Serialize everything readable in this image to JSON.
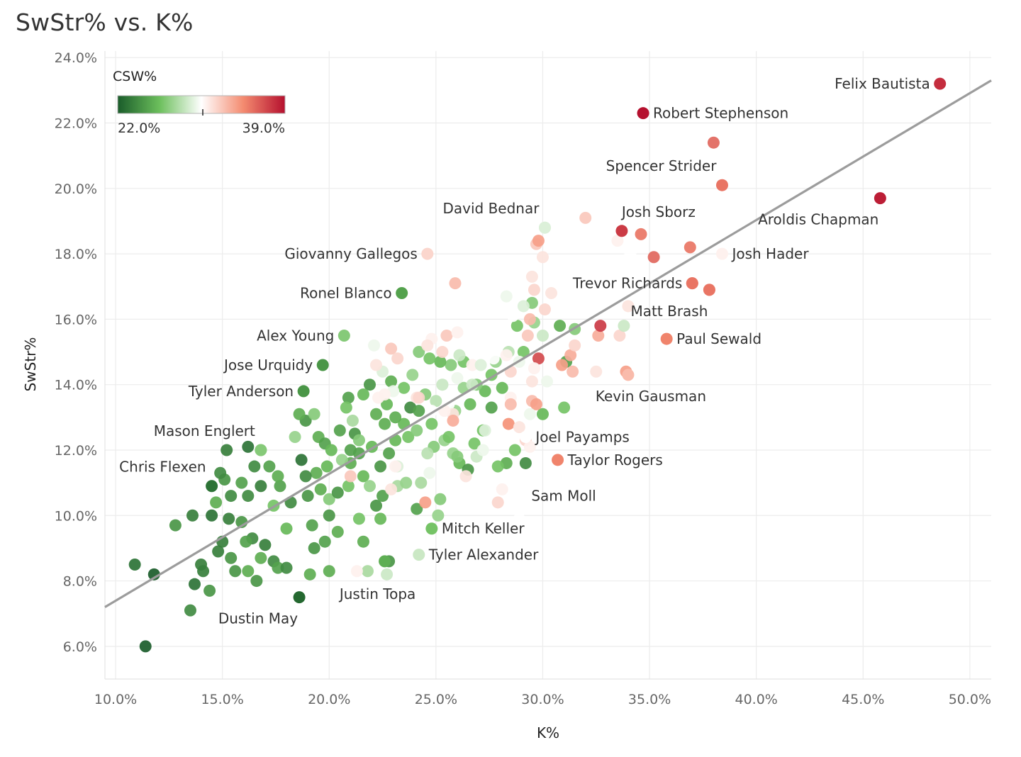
{
  "chart_data": {
    "type": "scatter",
    "title": "SwStr% vs. K%",
    "xlabel": "K%",
    "ylabel": "SwStr%",
    "xlim": [
      9.5,
      51
    ],
    "ylim": [
      5.0,
      24.2
    ],
    "x_ticks": [
      10,
      15,
      20,
      25,
      30,
      35,
      40,
      45,
      50
    ],
    "x_tick_labels": [
      "10.0%",
      "15.0%",
      "20.0%",
      "25.0%",
      "30.0%",
      "35.0%",
      "40.0%",
      "45.0%",
      "50.0%"
    ],
    "y_ticks": [
      6,
      8,
      10,
      12,
      14,
      16,
      18,
      20,
      22,
      24
    ],
    "y_tick_labels": [
      "6.0%",
      "8.0%",
      "10.0%",
      "12.0%",
      "14.0%",
      "16.0%",
      "18.0%",
      "20.0%",
      "22.0%",
      "24.0%"
    ],
    "grid": true,
    "trendline": {
      "x": [
        9.5,
        51
      ],
      "y": [
        7.2,
        23.3
      ]
    },
    "color_legend": {
      "title": "CSW%",
      "min_label": "22.0%",
      "max_label": "39.0%",
      "min": 22,
      "max": 39,
      "low_color": "#1a5c2a",
      "mid_color": "#ffffff",
      "high_color": "#b5102e",
      "placement": "top-left"
    },
    "labeled_points": [
      {
        "name": "Felix Bautista",
        "x": 48.6,
        "y": 23.2,
        "csw": 38.0,
        "label_side": "left"
      },
      {
        "name": "Robert Stephenson",
        "x": 34.7,
        "y": 22.3,
        "csw": 39.0,
        "label_side": "right"
      },
      {
        "name": "Spencer Strider",
        "x": 38.4,
        "y": 20.1,
        "csw": 35.5,
        "label_side": "above-left"
      },
      {
        "name": "Aroldis Chapman",
        "x": 45.8,
        "y": 19.7,
        "csw": 38.5,
        "label_side": "below-left"
      },
      {
        "name": "David Bednar",
        "x": 30.1,
        "y": 18.8,
        "csw": 29.5,
        "label_side": "above-left"
      },
      {
        "name": "Josh Sborz",
        "x": 33.7,
        "y": 18.7,
        "csw": 37.5,
        "label_side": "above-right"
      },
      {
        "name": "Giovanny Gallegos",
        "x": 24.6,
        "y": 18.0,
        "csw": 32.0,
        "label_side": "left"
      },
      {
        "name": "Josh Hader",
        "x": 38.4,
        "y": 18.0,
        "csw": 31.0,
        "label_side": "right"
      },
      {
        "name": "Ronel Blanco",
        "x": 23.4,
        "y": 16.8,
        "csw": 25.0,
        "label_side": "left"
      },
      {
        "name": "Trevor Richards",
        "x": 37.0,
        "y": 17.1,
        "csw": 35.5,
        "label_side": "left"
      },
      {
        "name": "Matt Brash",
        "x": 37.8,
        "y": 16.9,
        "csw": 35.5,
        "label_side": "below-left"
      },
      {
        "name": "Alex Young",
        "x": 20.7,
        "y": 15.5,
        "csw": 27.0,
        "label_side": "left"
      },
      {
        "name": "Paul Sewald",
        "x": 35.8,
        "y": 15.4,
        "csw": 35.0,
        "label_side": "right"
      },
      {
        "name": "Jose Urquidy",
        "x": 19.7,
        "y": 14.6,
        "csw": 24.5,
        "label_side": "left"
      },
      {
        "name": "Kevin Gausman",
        "x": 34.0,
        "y": 14.3,
        "csw": 33.0,
        "label_side": "below"
      },
      {
        "name": "Tyler Anderson",
        "x": 18.8,
        "y": 13.8,
        "csw": 24.5,
        "label_side": "left"
      },
      {
        "name": "Mason Englert",
        "x": 16.8,
        "y": 12.0,
        "csw": 27.0,
        "label_side": "above-left"
      },
      {
        "name": "Joel Payamps",
        "x": 29.2,
        "y": 12.4,
        "csw": 30.5,
        "label_side": "right"
      },
      {
        "name": "Taylor Rogers",
        "x": 30.7,
        "y": 11.7,
        "csw": 35.0,
        "label_side": "right"
      },
      {
        "name": "Chris Flexen",
        "x": 14.5,
        "y": 10.9,
        "csw": 23.0,
        "label_side": "above-left"
      },
      {
        "name": "Sam Moll",
        "x": 29.0,
        "y": 10.6,
        "csw": 30.5,
        "label_side": "right"
      },
      {
        "name": "Mitch Keller",
        "x": 24.8,
        "y": 9.6,
        "csw": 26.5,
        "label_side": "right"
      },
      {
        "name": "Tyler Alexander",
        "x": 24.2,
        "y": 8.8,
        "csw": 29.0,
        "label_side": "right"
      },
      {
        "name": "Justin Topa",
        "x": 22.6,
        "y": 8.6,
        "csw": 25.5,
        "label_side": "below-right"
      },
      {
        "name": "Dustin May",
        "x": 18.6,
        "y": 7.5,
        "csw": 22.5,
        "label_side": "below-left"
      }
    ],
    "other_points": [
      [
        11.4,
        6.0,
        22.0
      ],
      [
        10.9,
        8.5,
        23.0
      ],
      [
        11.8,
        8.2,
        22.0
      ],
      [
        13.5,
        7.1,
        24.0
      ],
      [
        13.7,
        7.9,
        23.0
      ],
      [
        14.0,
        8.5,
        23.5
      ],
      [
        14.4,
        7.7,
        24.5
      ],
      [
        12.8,
        9.7,
        24.5
      ],
      [
        13.6,
        10.0,
        23.5
      ],
      [
        14.5,
        10.0,
        23.0
      ],
      [
        15.0,
        9.2,
        23.5
      ],
      [
        15.4,
        8.7,
        24.5
      ],
      [
        15.6,
        8.3,
        24.5
      ],
      [
        15.1,
        11.1,
        24.5
      ],
      [
        15.2,
        12.0,
        23.5
      ],
      [
        16.2,
        12.1,
        23.0
      ],
      [
        16.8,
        12.0,
        27.0
      ],
      [
        16.2,
        10.6,
        24.0
      ],
      [
        16.8,
        10.9,
        23.5
      ],
      [
        17.4,
        10.3,
        26.5
      ],
      [
        17.7,
        10.9,
        25.0
      ],
      [
        18.2,
        10.4,
        24.0
      ],
      [
        18.0,
        9.6,
        26.0
      ],
      [
        17.0,
        9.1,
        23.5
      ],
      [
        16.8,
        8.7,
        25.5
      ],
      [
        17.4,
        8.6,
        24.0
      ],
      [
        17.6,
        8.4,
        25.0
      ],
      [
        18.0,
        8.4,
        24.0
      ],
      [
        16.6,
        8.0,
        24.5
      ],
      [
        16.2,
        8.3,
        25.5
      ],
      [
        15.9,
        9.8,
        24.5
      ],
      [
        16.4,
        9.3,
        24.0
      ],
      [
        15.3,
        9.9,
        23.5
      ],
      [
        14.8,
        8.9,
        23.5
      ],
      [
        14.1,
        8.3,
        23.5
      ],
      [
        18.7,
        11.7,
        23.0
      ],
      [
        18.9,
        12.9,
        24.5
      ],
      [
        19.3,
        13.1,
        27.0
      ],
      [
        19.5,
        12.4,
        25.5
      ],
      [
        19.8,
        12.2,
        25.0
      ],
      [
        20.1,
        12.0,
        26.0
      ],
      [
        20.5,
        12.6,
        25.0
      ],
      [
        21.2,
        12.5,
        24.5
      ],
      [
        21.4,
        11.9,
        25.0
      ],
      [
        19.9,
        11.5,
        26.0
      ],
      [
        19.4,
        11.3,
        25.5
      ],
      [
        18.9,
        11.2,
        24.0
      ],
      [
        19.0,
        10.6,
        24.5
      ],
      [
        19.6,
        10.8,
        25.5
      ],
      [
        20.0,
        10.5,
        27.0
      ],
      [
        20.4,
        10.7,
        24.5
      ],
      [
        20.9,
        10.9,
        26.5
      ],
      [
        21.0,
        11.6,
        25.5
      ],
      [
        21.6,
        11.2,
        26.0
      ],
      [
        21.9,
        10.9,
        27.5
      ],
      [
        20.0,
        10.0,
        24.5
      ],
      [
        20.4,
        9.5,
        25.5
      ],
      [
        19.2,
        9.7,
        25.0
      ],
      [
        19.8,
        9.2,
        25.0
      ],
      [
        19.3,
        9.0,
        24.5
      ],
      [
        19.1,
        8.2,
        25.5
      ],
      [
        20.0,
        8.3,
        25.5
      ],
      [
        21.4,
        9.9,
        26.5
      ],
      [
        21.6,
        9.2,
        25.5
      ],
      [
        22.2,
        10.3,
        24.5
      ],
      [
        22.4,
        9.9,
        26.0
      ],
      [
        22.5,
        10.6,
        25.0
      ],
      [
        23.2,
        10.9,
        28.0
      ],
      [
        23.6,
        11.0,
        27.5
      ],
      [
        23.2,
        11.5,
        29.5
      ],
      [
        22.4,
        11.5,
        24.5
      ],
      [
        22.8,
        11.9,
        25.0
      ],
      [
        22.6,
        12.8,
        25.5
      ],
      [
        23.1,
        12.3,
        26.0
      ],
      [
        23.5,
        12.8,
        26.0
      ],
      [
        23.8,
        13.3,
        24.0
      ],
      [
        24.2,
        13.2,
        25.0
      ],
      [
        24.5,
        13.7,
        27.0
      ],
      [
        24.8,
        12.8,
        26.5
      ],
      [
        25.4,
        12.3,
        27.5
      ],
      [
        25.8,
        11.9,
        27.5
      ],
      [
        26.1,
        11.6,
        26.0
      ],
      [
        26.5,
        11.4,
        24.5
      ],
      [
        26.8,
        12.2,
        26.5
      ],
      [
        27.2,
        12.6,
        26.5
      ],
      [
        27.6,
        13.3,
        25.0
      ],
      [
        27.3,
        13.8,
        26.0
      ],
      [
        27.6,
        14.3,
        26.5
      ],
      [
        28.1,
        13.9,
        26.0
      ],
      [
        27.8,
        14.7,
        27.5
      ],
      [
        28.4,
        15.0,
        28.5
      ],
      [
        28.8,
        15.8,
        26.5
      ],
      [
        29.1,
        15.0,
        26.5
      ],
      [
        29.6,
        15.9,
        27.5
      ],
      [
        29.5,
        16.5,
        27.0
      ],
      [
        30.0,
        15.5,
        29.0
      ],
      [
        30.8,
        15.8,
        25.5
      ],
      [
        31.5,
        15.7,
        27.0
      ],
      [
        31.1,
        14.7,
        25.0
      ],
      [
        31.0,
        13.3,
        26.5
      ],
      [
        30.0,
        13.1,
        26.0
      ],
      [
        28.7,
        12.0,
        26.5
      ],
      [
        28.3,
        11.6,
        25.5
      ],
      [
        29.2,
        11.6,
        24.0
      ],
      [
        27.9,
        11.5,
        26.5
      ],
      [
        26.0,
        11.8,
        27.0
      ],
      [
        25.6,
        12.4,
        26.5
      ],
      [
        24.9,
        12.1,
        27.0
      ],
      [
        24.3,
        11.0,
        28.0
      ],
      [
        24.1,
        10.2,
        25.0
      ],
      [
        25.2,
        10.5,
        27.0
      ],
      [
        25.0,
        13.5,
        28.5
      ],
      [
        25.9,
        13.2,
        27.5
      ],
      [
        26.6,
        13.4,
        26.0
      ],
      [
        26.3,
        13.9,
        27.5
      ],
      [
        26.9,
        14.0,
        27.0
      ],
      [
        26.3,
        14.7,
        26.5
      ],
      [
        25.7,
        14.6,
        27.0
      ],
      [
        25.2,
        14.7,
        26.0
      ],
      [
        24.7,
        14.8,
        26.5
      ],
      [
        24.2,
        15.0,
        27.0
      ],
      [
        23.9,
        14.3,
        27.5
      ],
      [
        23.5,
        13.9,
        26.5
      ],
      [
        22.9,
        14.1,
        25.5
      ],
      [
        22.5,
        14.4,
        29.5
      ],
      [
        21.9,
        14.0,
        24.5
      ],
      [
        21.6,
        13.7,
        26.0
      ],
      [
        20.9,
        13.6,
        25.0
      ],
      [
        20.8,
        13.3,
        26.5
      ],
      [
        21.1,
        12.9,
        28.0
      ],
      [
        22.2,
        13.1,
        25.5
      ],
      [
        22.7,
        13.4,
        26.0
      ],
      [
        23.1,
        13.0,
        25.5
      ],
      [
        23.7,
        12.4,
        26.5
      ],
      [
        24.1,
        12.6,
        27.0
      ],
      [
        24.6,
        11.9,
        28.5
      ],
      [
        22.0,
        12.1,
        26.0
      ],
      [
        21.4,
        12.3,
        27.0
      ],
      [
        21.0,
        12.0,
        25.0
      ],
      [
        20.6,
        11.7,
        27.5
      ],
      [
        18.4,
        12.4,
        27.5
      ],
      [
        18.6,
        13.1,
        25.5
      ],
      [
        17.2,
        11.5,
        25.0
      ],
      [
        17.6,
        11.2,
        25.5
      ],
      [
        16.5,
        11.5,
        24.0
      ],
      [
        15.9,
        11.0,
        25.0
      ],
      [
        15.4,
        10.6,
        24.0
      ],
      [
        14.7,
        10.4,
        25.5
      ],
      [
        14.9,
        11.3,
        24.0
      ],
      [
        16.1,
        9.2,
        25.0
      ],
      [
        22.8,
        8.6,
        24.5
      ],
      [
        21.8,
        8.3,
        28.0
      ],
      [
        21.3,
        8.3,
        31.0
      ],
      [
        25.1,
        10.0,
        27.5
      ],
      [
        24.8,
        15.4,
        31.0
      ],
      [
        25.5,
        15.5,
        32.5
      ],
      [
        26.0,
        15.6,
        31.0
      ],
      [
        25.3,
        15.0,
        32.0
      ],
      [
        24.6,
        15.2,
        31.5
      ],
      [
        22.9,
        15.1,
        32.5
      ],
      [
        23.2,
        14.8,
        32.0
      ],
      [
        22.1,
        15.2,
        30.0
      ],
      [
        22.2,
        14.6,
        31.5
      ],
      [
        26.7,
        14.6,
        31.0
      ],
      [
        26.0,
        14.2,
        30.0
      ],
      [
        25.3,
        14.0,
        29.5
      ],
      [
        25.6,
        13.4,
        30.5
      ],
      [
        25.8,
        13.1,
        31.5
      ],
      [
        24.8,
        13.2,
        30.5
      ],
      [
        24.1,
        13.6,
        31.5
      ],
      [
        23.0,
        13.8,
        30.0
      ],
      [
        22.3,
        13.6,
        31.0
      ],
      [
        28.3,
        14.9,
        31.0
      ],
      [
        28.6,
        16.1,
        30.5
      ],
      [
        28.3,
        16.7,
        30.0
      ],
      [
        29.1,
        16.4,
        29.5
      ],
      [
        29.4,
        16.0,
        33.0
      ],
      [
        29.6,
        16.9,
        32.0
      ],
      [
        29.5,
        17.3,
        31.5
      ],
      [
        29.7,
        18.3,
        32.5
      ],
      [
        30.0,
        17.9,
        31.5
      ],
      [
        30.4,
        16.8,
        31.5
      ],
      [
        30.1,
        16.3,
        32.0
      ],
      [
        29.3,
        15.5,
        32.5
      ],
      [
        29.8,
        14.8,
        37.0
      ],
      [
        29.6,
        14.5,
        31.0
      ],
      [
        30.2,
        14.1,
        30.0
      ],
      [
        29.5,
        13.5,
        33.0
      ],
      [
        28.9,
        14.7,
        30.0
      ],
      [
        28.5,
        14.4,
        32.0
      ],
      [
        28.5,
        13.6,
        31.0
      ],
      [
        28.5,
        13.4,
        33.0
      ],
      [
        29.7,
        13.4,
        34.0
      ],
      [
        28.4,
        12.8,
        34.5
      ],
      [
        29.2,
        12.3,
        32.0
      ],
      [
        29.4,
        12.1,
        31.0
      ],
      [
        31.3,
        14.9,
        33.5
      ],
      [
        31.5,
        15.2,
        32.0
      ],
      [
        30.9,
        14.6,
        34.0
      ],
      [
        31.4,
        14.4,
        33.0
      ],
      [
        32.5,
        14.4,
        31.5
      ],
      [
        32.6,
        15.5,
        33.5
      ],
      [
        32.7,
        15.8,
        37.5
      ],
      [
        33.6,
        15.5,
        32.0
      ],
      [
        33.9,
        14.4,
        34.0
      ],
      [
        34.0,
        16.4,
        31.5
      ],
      [
        33.5,
        18.4,
        31.0
      ],
      [
        34.1,
        18.0,
        30.5
      ],
      [
        34.6,
        18.6,
        35.5
      ],
      [
        35.2,
        17.9,
        36.0
      ],
      [
        36.9,
        18.2,
        35.5
      ],
      [
        37.0,
        17.1,
        35.5
      ],
      [
        37.8,
        16.9,
        35.5
      ],
      [
        38.0,
        21.4,
        36.0
      ],
      [
        32.0,
        19.1,
        32.5
      ],
      [
        30.1,
        18.8,
        29.5
      ],
      [
        29.8,
        18.4,
        34.0
      ],
      [
        25.9,
        17.1,
        33.0
      ],
      [
        25.3,
        14.0,
        29.0
      ],
      [
        25.8,
        12.9,
        33.5
      ],
      [
        25.4,
        13.2,
        31.0
      ],
      [
        26.4,
        11.2,
        31.5
      ],
      [
        26.9,
        11.8,
        29.0
      ],
      [
        27.3,
        12.6,
        29.5
      ],
      [
        27.9,
        10.4,
        32.0
      ],
      [
        26.7,
        14.0,
        29.0
      ],
      [
        28.9,
        12.7,
        31.5
      ],
      [
        22.6,
        13.7,
        31.0
      ],
      [
        21.0,
        11.2,
        32.5
      ],
      [
        22.9,
        10.8,
        31.5
      ],
      [
        23.1,
        11.5,
        31.0
      ],
      [
        24.2,
        13.6,
        32.0
      ],
      [
        24.5,
        10.4,
        34.0
      ],
      [
        27.1,
        14.6,
        29.5
      ],
      [
        26.1,
        14.9,
        29.0
      ],
      [
        27.7,
        14.8,
        30.5
      ],
      [
        28.1,
        10.8,
        31.0
      ],
      [
        27.2,
        12.0,
        30.0
      ],
      [
        22.7,
        8.2,
        29.0
      ],
      [
        24.7,
        11.3,
        30.0
      ],
      [
        28.9,
        9.9,
        30.5
      ],
      [
        29.4,
        13.1,
        30.0
      ],
      [
        29.5,
        14.1,
        31.5
      ],
      [
        33.8,
        15.8,
        29.0
      ]
    ]
  }
}
